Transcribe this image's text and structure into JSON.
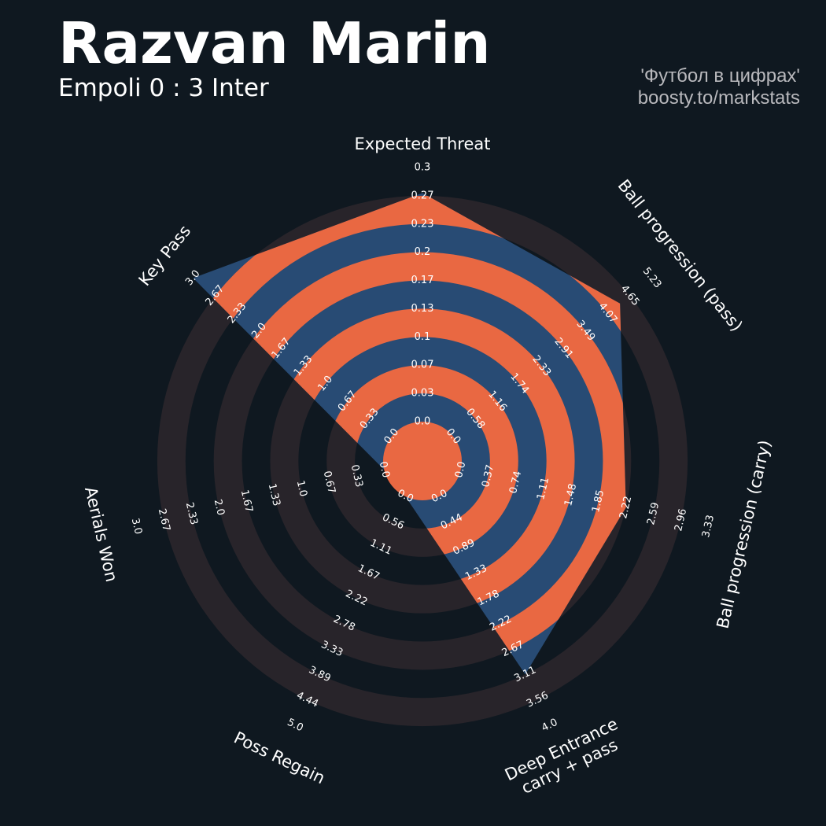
{
  "header": {
    "player": "Razvan Marin",
    "match": "Empoli 0 : 3 Inter"
  },
  "credit": {
    "line1": "'Футбол в цифрах'",
    "line2": "boosty.to/markstats"
  },
  "colors": {
    "background": "#0f1820",
    "ring_dark": "#28242a",
    "value_fill": "#284b74",
    "value_band": "#e96842",
    "ring_label": "#ffffff"
  },
  "chart_data": {
    "type": "radar",
    "params": [
      {
        "label": "Expected Threat",
        "value": 0.27,
        "min": 0.0,
        "max": 0.3,
        "ticks": [
          "0.0",
          "0.03",
          "0.07",
          "0.1",
          "0.13",
          "0.17",
          "0.2",
          "0.23",
          "0.27",
          "0.3"
        ]
      },
      {
        "label": "Ball progression (pass)",
        "value": 4.39,
        "min": 0.0,
        "max": 5.23,
        "ticks": [
          "0.0",
          "0.58",
          "1.16",
          "1.74",
          "2.33",
          "2.91",
          "3.49",
          "4.07",
          "4.65",
          "5.23"
        ]
      },
      {
        "label": "Ball progression (carry)",
        "value": 2.22,
        "min": 0.0,
        "max": 3.33,
        "ticks": [
          "0.0",
          "0.37",
          "0.74",
          "1.11",
          "1.48",
          "1.85",
          "2.22",
          "2.59",
          "2.96",
          "3.33"
        ]
      },
      {
        "label": "Deep Entrance\ncarry + pass",
        "value": 3.11,
        "min": 0.0,
        "max": 4.0,
        "ticks": [
          "0.0",
          "0.44",
          "0.89",
          "1.33",
          "1.78",
          "2.22",
          "2.67",
          "3.11",
          "3.56",
          "4.0"
        ]
      },
      {
        "label": "Poss Regain",
        "value": 0.0,
        "min": 0.0,
        "max": 5.0,
        "ticks": [
          "0.0",
          "0.56",
          "1.11",
          "1.67",
          "2.22",
          "2.78",
          "3.33",
          "3.89",
          "4.44",
          "5.0"
        ]
      },
      {
        "label": "Aerials Won",
        "value": 0.0,
        "min": 0.0,
        "max": 3.0,
        "ticks": [
          "0.0",
          "0.33",
          "0.67",
          "1.0",
          "1.33",
          "1.67",
          "2.0",
          "2.33",
          "2.67",
          "3.0"
        ]
      },
      {
        "label": "Key Pass",
        "value": 3.0,
        "min": 0.0,
        "max": 3.0,
        "ticks": [
          "0.0",
          "0.33",
          "0.67",
          "1.0",
          "1.33",
          "1.67",
          "2.0",
          "2.33",
          "2.67",
          "3.0"
        ]
      }
    ]
  }
}
